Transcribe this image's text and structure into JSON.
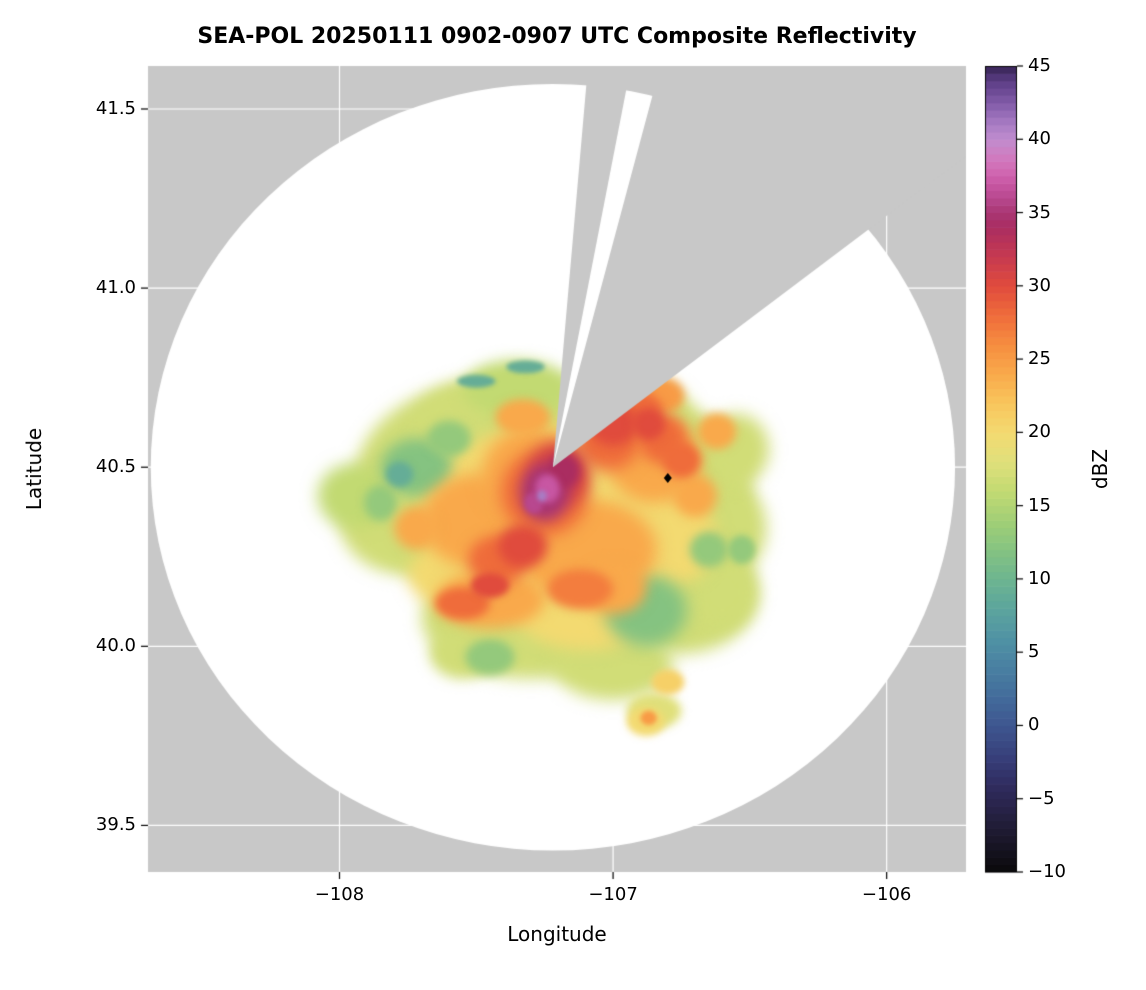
{
  "figure": {
    "title": "SEA-POL 20250111 0902-0907 UTC Composite Reflectivity",
    "xlabel": "Longitude",
    "ylabel": "Latitude",
    "colorbar_label": "dBZ"
  },
  "chart_data": {
    "type": "heatmap",
    "title": "SEA-POL 20250111 0902-0907 UTC Composite Reflectivity",
    "xlabel": "Longitude",
    "ylabel": "Latitude",
    "units": "dBZ",
    "xlim": [
      -108.7,
      -105.71
    ],
    "ylim": [
      39.37,
      41.62
    ],
    "xticks": [
      {
        "value": -108,
        "label": "−108"
      },
      {
        "value": -107,
        "label": "−107"
      },
      {
        "value": -106,
        "label": "−106"
      }
    ],
    "yticks": [
      {
        "value": 41.5,
        "label": "41.5"
      },
      {
        "value": 41.0,
        "label": "41.0"
      },
      {
        "value": 40.5,
        "label": "40.5"
      },
      {
        "value": 40.0,
        "label": "40.0"
      },
      {
        "value": 39.5,
        "label": "39.5"
      }
    ],
    "grid": {
      "show": true,
      "color": "#ffffff"
    },
    "background_color": "#c8c8c8",
    "coverage": {
      "color": "#ffffff",
      "center_lon": -107.22,
      "center_lat": 40.5,
      "radius_lon_deg": 1.47,
      "radius_lat_deg": 1.07
    },
    "missing_sector": {
      "color": "#c8c8c8",
      "azimuth_start_deg": 5,
      "azimuth_end_deg": 53,
      "clear_ray_azimuth_deg": [
        11,
        15
      ]
    },
    "site_marker": {
      "lon": -106.8,
      "lat": 40.47,
      "shape": "diamond",
      "color": "#000000"
    },
    "colorbar": {
      "label": "dBZ",
      "min": -10,
      "max": 45,
      "ticks": [
        {
          "value": 45,
          "label": "45"
        },
        {
          "value": 40,
          "label": "40"
        },
        {
          "value": 35,
          "label": "35"
        },
        {
          "value": 30,
          "label": "30"
        },
        {
          "value": 25,
          "label": "25"
        },
        {
          "value": 20,
          "label": "20"
        },
        {
          "value": 15,
          "label": "15"
        },
        {
          "value": 10,
          "label": "10"
        },
        {
          "value": 5,
          "label": "5"
        },
        {
          "value": 0,
          "label": "0"
        },
        {
          "value": -5,
          "label": "−5"
        },
        {
          "value": -10,
          "label": "−10"
        }
      ],
      "stops": [
        {
          "v": -10,
          "c": "#0a0a0a"
        },
        {
          "v": -8,
          "c": "#191526"
        },
        {
          "v": -6,
          "c": "#262143"
        },
        {
          "v": -4,
          "c": "#302c60"
        },
        {
          "v": -2,
          "c": "#38417c"
        },
        {
          "v": 0,
          "c": "#3e568f"
        },
        {
          "v": 2,
          "c": "#436c9b"
        },
        {
          "v": 4,
          "c": "#4980a2"
        },
        {
          "v": 6,
          "c": "#5093a4"
        },
        {
          "v": 8,
          "c": "#5ca59d"
        },
        {
          "v": 10,
          "c": "#6db590"
        },
        {
          "v": 12,
          "c": "#85c381"
        },
        {
          "v": 14,
          "c": "#a2cf76"
        },
        {
          "v": 16,
          "c": "#c2da72"
        },
        {
          "v": 18,
          "c": "#e0e07b"
        },
        {
          "v": 20,
          "c": "#f3da71"
        },
        {
          "v": 22,
          "c": "#f9c55c"
        },
        {
          "v": 24,
          "c": "#f9a94b"
        },
        {
          "v": 26,
          "c": "#f68d40"
        },
        {
          "v": 28,
          "c": "#ef6c3b"
        },
        {
          "v": 30,
          "c": "#e04b3d"
        },
        {
          "v": 32,
          "c": "#c63a50"
        },
        {
          "v": 34,
          "c": "#aa2d61"
        },
        {
          "v": 35,
          "c": "#a93673"
        },
        {
          "v": 36,
          "c": "#b8488f"
        },
        {
          "v": 37,
          "c": "#c857a3"
        },
        {
          "v": 38,
          "c": "#d26cb5"
        },
        {
          "v": 39,
          "c": "#cf7fc2"
        },
        {
          "v": 40,
          "c": "#c08cce"
        },
        {
          "v": 41,
          "c": "#a97dc5"
        },
        {
          "v": 42,
          "c": "#8f66b2"
        },
        {
          "v": 43,
          "c": "#74509c"
        },
        {
          "v": 44,
          "c": "#5c3d85"
        },
        {
          "v": 45,
          "c": "#352353"
        }
      ]
    },
    "echo_regions": [
      [
        -107.5,
        40.45,
        0.45,
        0.28,
        17
      ],
      [
        -107.1,
        40.35,
        0.5,
        0.3,
        17
      ],
      [
        -106.8,
        40.45,
        0.3,
        0.22,
        17
      ],
      [
        -107.3,
        40.08,
        0.4,
        0.17,
        17
      ],
      [
        -106.75,
        40.15,
        0.28,
        0.17,
        17
      ],
      [
        -107.75,
        40.35,
        0.25,
        0.15,
        17
      ],
      [
        -107.0,
        40.63,
        0.3,
        0.14,
        17
      ],
      [
        -107.45,
        40.62,
        0.28,
        0.13,
        17
      ],
      [
        -106.62,
        40.33,
        0.18,
        0.15,
        17
      ],
      [
        -107.0,
        39.95,
        0.22,
        0.1,
        17
      ],
      [
        -107.55,
        39.98,
        0.12,
        0.07,
        17
      ],
      [
        -107.95,
        40.42,
        0.13,
        0.09,
        16
      ],
      [
        -107.35,
        40.72,
        0.2,
        0.08,
        16
      ],
      [
        -106.55,
        40.55,
        0.12,
        0.1,
        17
      ],
      [
        -106.6,
        40.15,
        0.12,
        0.1,
        17
      ],
      [
        -106.85,
        39.82,
        0.1,
        0.05,
        18
      ],
      [
        -106.88,
        39.79,
        0.07,
        0.04,
        20
      ],
      [
        -106.8,
        39.9,
        0.06,
        0.035,
        21
      ],
      [
        -107.3,
        40.35,
        0.4,
        0.26,
        20
      ],
      [
        -107.0,
        40.45,
        0.3,
        0.22,
        20
      ],
      [
        -107.1,
        40.12,
        0.28,
        0.13,
        20
      ],
      [
        -106.8,
        40.3,
        0.18,
        0.13,
        20
      ],
      [
        -107.55,
        40.2,
        0.2,
        0.1,
        20
      ],
      [
        -107.72,
        40.5,
        0.13,
        0.08,
        12
      ],
      [
        -106.88,
        40.1,
        0.15,
        0.1,
        12
      ],
      [
        -107.45,
        39.97,
        0.09,
        0.05,
        13
      ],
      [
        -106.65,
        40.27,
        0.07,
        0.05,
        13
      ],
      [
        -107.85,
        40.4,
        0.06,
        0.05,
        13
      ],
      [
        -106.53,
        40.27,
        0.05,
        0.04,
        13
      ],
      [
        -107.6,
        40.58,
        0.08,
        0.05,
        13
      ],
      [
        -107.78,
        40.48,
        0.05,
        0.035,
        9
      ],
      [
        -107.5,
        40.74,
        0.07,
        0.018,
        9
      ],
      [
        -107.32,
        40.78,
        0.07,
        0.018,
        9
      ],
      [
        -107.12,
        40.73,
        0.05,
        0.015,
        9
      ],
      [
        -107.5,
        40.35,
        0.2,
        0.13,
        24
      ],
      [
        -107.3,
        40.48,
        0.18,
        0.13,
        24
      ],
      [
        -107.1,
        40.27,
        0.26,
        0.14,
        24
      ],
      [
        -106.85,
        40.52,
        0.17,
        0.12,
        24
      ],
      [
        -107.45,
        40.13,
        0.2,
        0.08,
        24
      ],
      [
        -107.0,
        40.16,
        0.12,
        0.07,
        24
      ],
      [
        -107.72,
        40.33,
        0.08,
        0.06,
        24
      ],
      [
        -107.0,
        40.65,
        0.13,
        0.06,
        25
      ],
      [
        -107.33,
        40.64,
        0.1,
        0.05,
        24
      ],
      [
        -106.7,
        40.42,
        0.08,
        0.06,
        24
      ],
      [
        -106.62,
        40.6,
        0.07,
        0.05,
        24
      ],
      [
        -106.82,
        40.7,
        0.08,
        0.05,
        25
      ],
      [
        -106.87,
        39.8,
        0.03,
        0.02,
        25
      ],
      [
        -107.25,
        40.43,
        0.16,
        0.12,
        28
      ],
      [
        -107.02,
        40.58,
        0.12,
        0.09,
        28
      ],
      [
        -106.82,
        40.58,
        0.09,
        0.07,
        28
      ],
      [
        -107.42,
        40.24,
        0.11,
        0.07,
        28
      ],
      [
        -107.55,
        40.12,
        0.1,
        0.045,
        28
      ],
      [
        -107.12,
        40.16,
        0.12,
        0.055,
        27
      ],
      [
        -106.75,
        40.52,
        0.07,
        0.05,
        28
      ],
      [
        -107.0,
        40.68,
        0.1,
        0.05,
        27
      ],
      [
        -106.9,
        40.66,
        0.08,
        0.05,
        28
      ],
      [
        -107.2,
        40.48,
        0.11,
        0.09,
        31
      ],
      [
        -107.0,
        40.62,
        0.09,
        0.06,
        30
      ],
      [
        -107.33,
        40.28,
        0.09,
        0.06,
        30
      ],
      [
        -106.87,
        40.62,
        0.06,
        0.045,
        30
      ],
      [
        -107.45,
        40.17,
        0.07,
        0.035,
        30
      ],
      [
        -107.25,
        40.43,
        0.09,
        0.08,
        35
      ],
      [
        -107.18,
        40.49,
        0.06,
        0.05,
        34
      ],
      [
        -107.24,
        40.44,
        0.045,
        0.04,
        37
      ],
      [
        -107.29,
        40.4,
        0.035,
        0.03,
        36
      ],
      [
        -107.26,
        40.42,
        0.018,
        0.016,
        41
      ]
    ]
  }
}
